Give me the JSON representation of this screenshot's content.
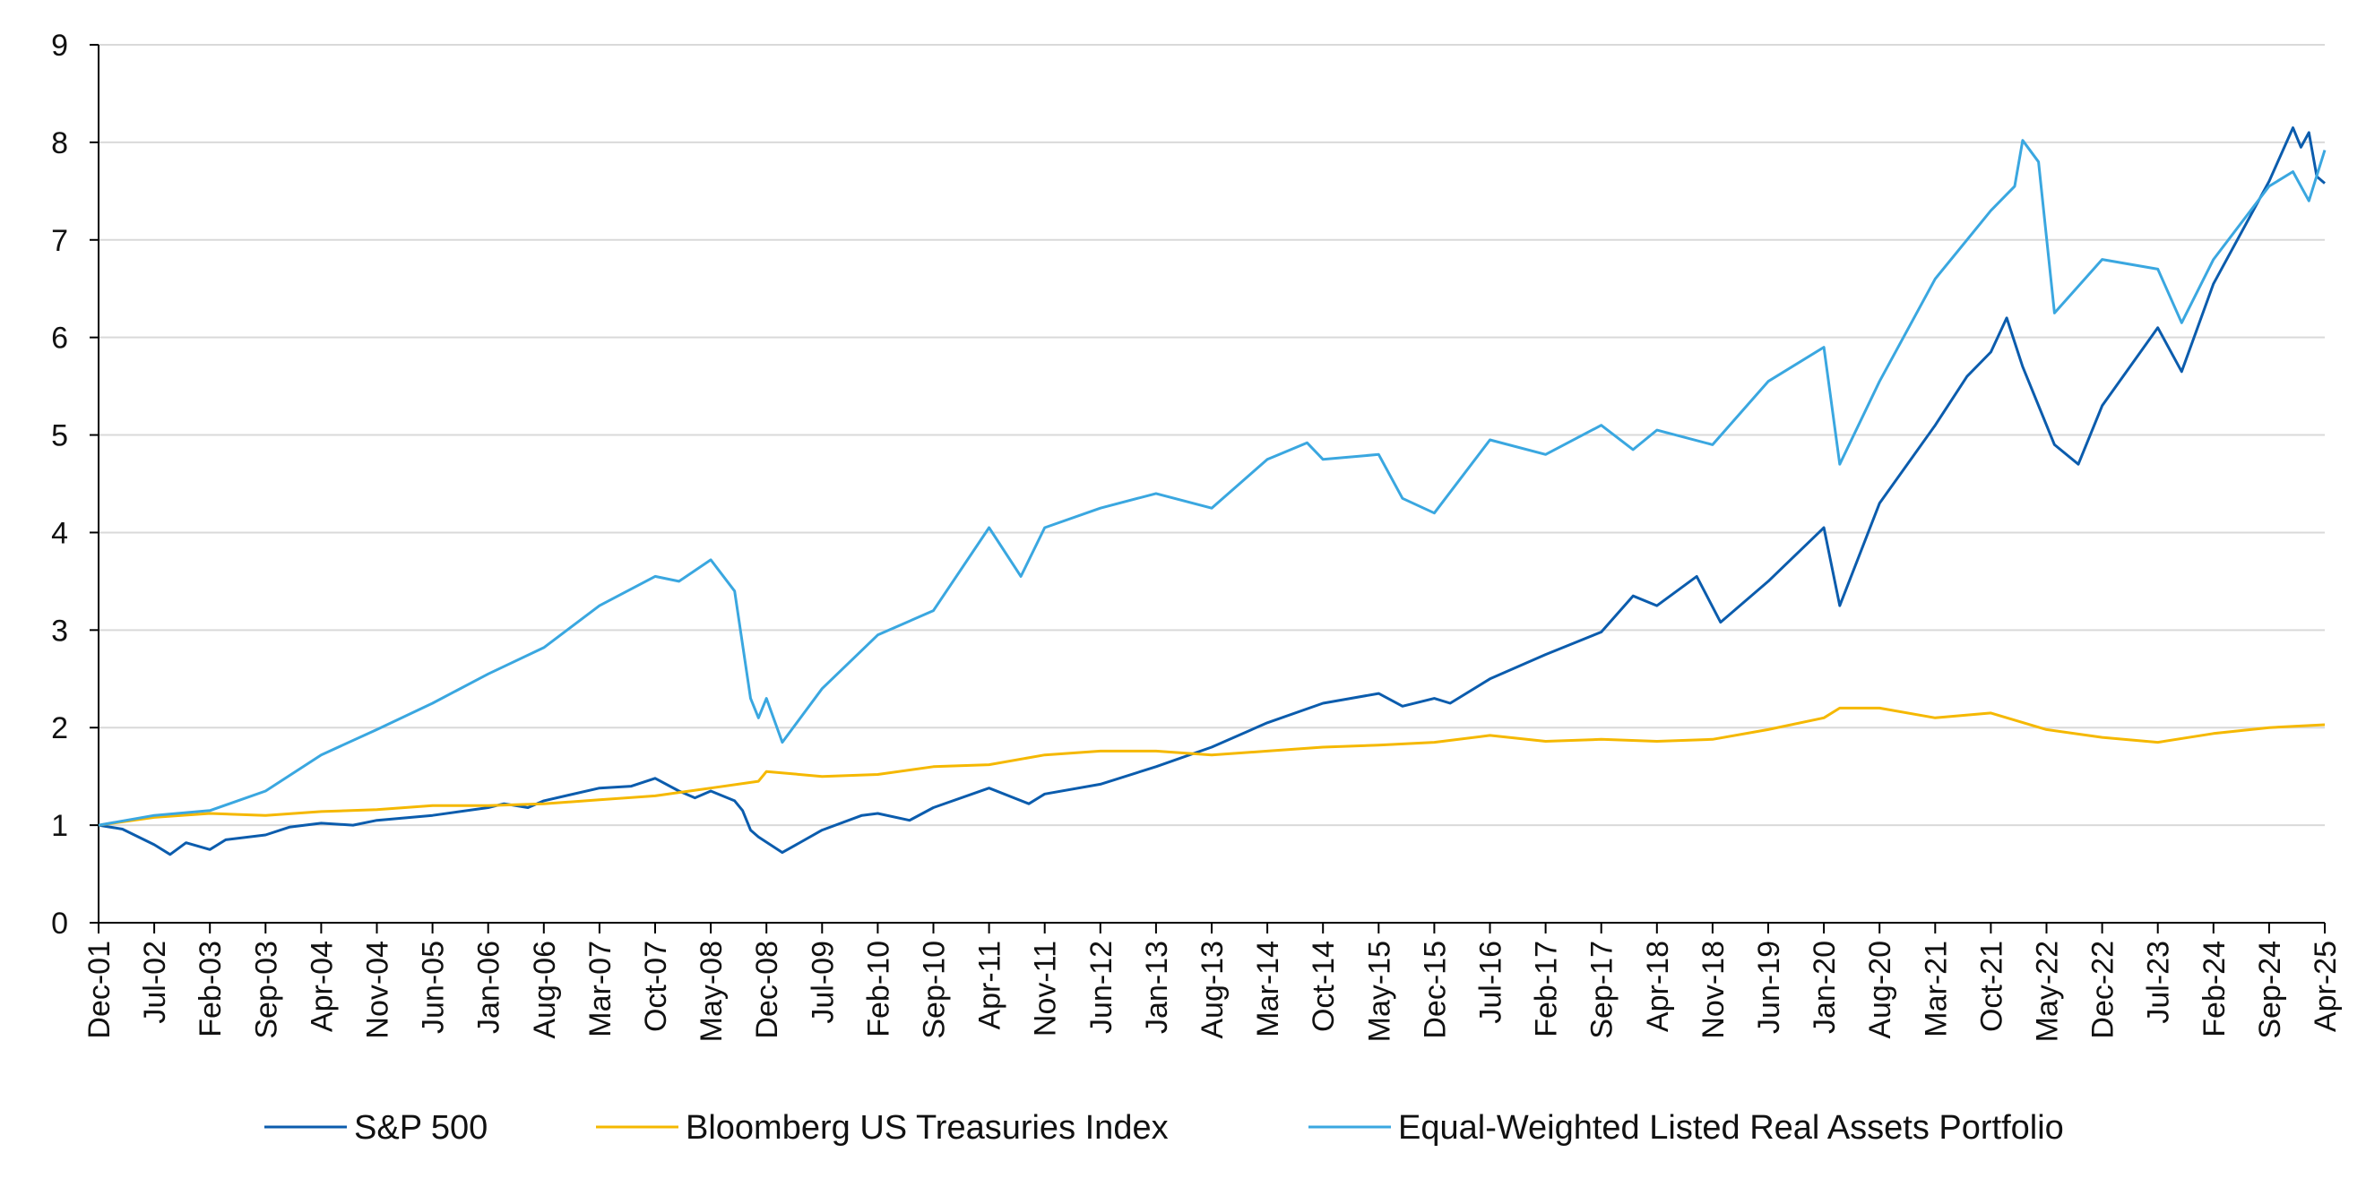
{
  "chart_data": {
    "type": "line",
    "title": "",
    "xlabel": "",
    "ylabel": "",
    "ylim": [
      0,
      9
    ],
    "y_ticks": [
      0,
      1,
      2,
      3,
      4,
      5,
      6,
      7,
      8,
      9
    ],
    "grid": "horizontal",
    "legend_position": "bottom",
    "x_tick_labels": [
      "Dec-01",
      "Jul-02",
      "Feb-03",
      "Sep-03",
      "Apr-04",
      "Nov-04",
      "Jun-05",
      "Jan-06",
      "Aug-06",
      "Mar-07",
      "Oct-07",
      "May-08",
      "Dec-08",
      "Jul-09",
      "Feb-10",
      "Sep-10",
      "Apr-11",
      "Nov-11",
      "Jun-12",
      "Jan-13",
      "Aug-13",
      "Mar-14",
      "Oct-14",
      "May-15",
      "Dec-15",
      "Jul-16",
      "Feb-17",
      "Sep-17",
      "Apr-18",
      "Nov-18",
      "Jun-19",
      "Jan-20",
      "Aug-20",
      "Mar-21",
      "Oct-21",
      "May-22",
      "Dec-22",
      "Jul-23",
      "Feb-24",
      "Sep-24",
      "Apr-25"
    ],
    "x_start": "Dec-01",
    "x_end": "Apr-25",
    "series": [
      {
        "name": "S&P 500",
        "color": "#0b5cad",
        "points": [
          [
            "Dec-01",
            1.0
          ],
          [
            "Mar-02",
            0.96
          ],
          [
            "Jul-02",
            0.8
          ],
          [
            "Sep-02",
            0.7
          ],
          [
            "Nov-02",
            0.82
          ],
          [
            "Feb-03",
            0.75
          ],
          [
            "Apr-03",
            0.85
          ],
          [
            "Sep-03",
            0.9
          ],
          [
            "Dec-03",
            0.98
          ],
          [
            "Apr-04",
            1.02
          ],
          [
            "Aug-04",
            1.0
          ],
          [
            "Nov-04",
            1.05
          ],
          [
            "Jun-05",
            1.1
          ],
          [
            "Jan-06",
            1.18
          ],
          [
            "Mar-06",
            1.22
          ],
          [
            "Jun-06",
            1.18
          ],
          [
            "Aug-06",
            1.25
          ],
          [
            "Mar-07",
            1.38
          ],
          [
            "Jul-07",
            1.4
          ],
          [
            "Oct-07",
            1.48
          ],
          [
            "Jan-08",
            1.35
          ],
          [
            "Mar-08",
            1.28
          ],
          [
            "May-08",
            1.35
          ],
          [
            "Aug-08",
            1.25
          ],
          [
            "Sep-08",
            1.15
          ],
          [
            "Oct-08",
            0.95
          ],
          [
            "Nov-08",
            0.88
          ],
          [
            "Feb-09",
            0.72
          ],
          [
            "Jul-09",
            0.95
          ],
          [
            "Dec-09",
            1.1
          ],
          [
            "Feb-10",
            1.12
          ],
          [
            "Jun-10",
            1.05
          ],
          [
            "Sep-10",
            1.18
          ],
          [
            "Apr-11",
            1.38
          ],
          [
            "Sep-11",
            1.22
          ],
          [
            "Nov-11",
            1.32
          ],
          [
            "Jun-12",
            1.42
          ],
          [
            "Jan-13",
            1.6
          ],
          [
            "Aug-13",
            1.8
          ],
          [
            "Mar-14",
            2.05
          ],
          [
            "Oct-14",
            2.25
          ],
          [
            "May-15",
            2.35
          ],
          [
            "Aug-15",
            2.22
          ],
          [
            "Dec-15",
            2.3
          ],
          [
            "Feb-16",
            2.25
          ],
          [
            "Jul-16",
            2.5
          ],
          [
            "Feb-17",
            2.75
          ],
          [
            "Sep-17",
            2.98
          ],
          [
            "Jan-18",
            3.35
          ],
          [
            "Apr-18",
            3.25
          ],
          [
            "Sep-18",
            3.55
          ],
          [
            "Dec-18",
            3.08
          ],
          [
            "Jun-19",
            3.5
          ],
          [
            "Jan-20",
            4.05
          ],
          [
            "Mar-20",
            3.25
          ],
          [
            "Aug-20",
            4.3
          ],
          [
            "Mar-21",
            5.1
          ],
          [
            "Jul-21",
            5.6
          ],
          [
            "Oct-21",
            5.85
          ],
          [
            "Dec-21",
            6.2
          ],
          [
            "Feb-22",
            5.7
          ],
          [
            "Jun-22",
            4.9
          ],
          [
            "Sep-22",
            4.7
          ],
          [
            "Dec-22",
            5.3
          ],
          [
            "Jul-23",
            6.1
          ],
          [
            "Oct-23",
            5.65
          ],
          [
            "Feb-24",
            6.55
          ],
          [
            "Sep-24",
            7.6
          ],
          [
            "Dec-24",
            8.15
          ],
          [
            "Jan-25",
            7.95
          ],
          [
            "Feb-25",
            8.1
          ],
          [
            "Mar-25",
            7.65
          ],
          [
            "Apr-25",
            7.58
          ]
        ]
      },
      {
        "name": "Bloomberg US Treasuries Index",
        "color": "#f5b800",
        "points": [
          [
            "Dec-01",
            1.0
          ],
          [
            "Jul-02",
            1.08
          ],
          [
            "Feb-03",
            1.12
          ],
          [
            "Sep-03",
            1.1
          ],
          [
            "Apr-04",
            1.14
          ],
          [
            "Nov-04",
            1.16
          ],
          [
            "Jun-05",
            1.2
          ],
          [
            "Jan-06",
            1.2
          ],
          [
            "Aug-06",
            1.22
          ],
          [
            "Mar-07",
            1.26
          ],
          [
            "Oct-07",
            1.3
          ],
          [
            "May-08",
            1.38
          ],
          [
            "Nov-08",
            1.45
          ],
          [
            "Dec-08",
            1.55
          ],
          [
            "Jul-09",
            1.5
          ],
          [
            "Feb-10",
            1.52
          ],
          [
            "Sep-10",
            1.6
          ],
          [
            "Apr-11",
            1.62
          ],
          [
            "Nov-11",
            1.72
          ],
          [
            "Jun-12",
            1.76
          ],
          [
            "Jan-13",
            1.76
          ],
          [
            "Aug-13",
            1.72
          ],
          [
            "Mar-14",
            1.76
          ],
          [
            "Oct-14",
            1.8
          ],
          [
            "May-15",
            1.82
          ],
          [
            "Dec-15",
            1.85
          ],
          [
            "Jul-16",
            1.92
          ],
          [
            "Feb-17",
            1.86
          ],
          [
            "Sep-17",
            1.88
          ],
          [
            "Apr-18",
            1.86
          ],
          [
            "Nov-18",
            1.88
          ],
          [
            "Jun-19",
            1.98
          ],
          [
            "Jan-20",
            2.1
          ],
          [
            "Mar-20",
            2.2
          ],
          [
            "Aug-20",
            2.2
          ],
          [
            "Mar-21",
            2.1
          ],
          [
            "Oct-21",
            2.15
          ],
          [
            "May-22",
            1.98
          ],
          [
            "Dec-22",
            1.9
          ],
          [
            "Jul-23",
            1.85
          ],
          [
            "Feb-24",
            1.94
          ],
          [
            "Sep-24",
            2.0
          ],
          [
            "Apr-25",
            2.03
          ]
        ]
      },
      {
        "name": "Equal-Weighted Listed Real Assets Portfolio",
        "color": "#3aa7e0",
        "points": [
          [
            "Dec-01",
            1.0
          ],
          [
            "Jul-02",
            1.1
          ],
          [
            "Feb-03",
            1.15
          ],
          [
            "Sep-03",
            1.35
          ],
          [
            "Apr-04",
            1.72
          ],
          [
            "Nov-04",
            1.98
          ],
          [
            "Jun-05",
            2.25
          ],
          [
            "Jan-06",
            2.55
          ],
          [
            "Aug-06",
            2.82
          ],
          [
            "Mar-07",
            3.25
          ],
          [
            "Oct-07",
            3.55
          ],
          [
            "Jan-08",
            3.5
          ],
          [
            "May-08",
            3.72
          ],
          [
            "Aug-08",
            3.4
          ],
          [
            "Oct-08",
            2.3
          ],
          [
            "Nov-08",
            2.1
          ],
          [
            "Dec-08",
            2.3
          ],
          [
            "Feb-09",
            1.85
          ],
          [
            "Jul-09",
            2.4
          ],
          [
            "Feb-10",
            2.95
          ],
          [
            "Sep-10",
            3.2
          ],
          [
            "Apr-11",
            4.05
          ],
          [
            "Aug-11",
            3.55
          ],
          [
            "Nov-11",
            4.05
          ],
          [
            "Jun-12",
            4.25
          ],
          [
            "Jan-13",
            4.4
          ],
          [
            "Aug-13",
            4.25
          ],
          [
            "Mar-14",
            4.75
          ],
          [
            "Aug-14",
            4.92
          ],
          [
            "Oct-14",
            4.75
          ],
          [
            "May-15",
            4.8
          ],
          [
            "Aug-15",
            4.35
          ],
          [
            "Dec-15",
            4.2
          ],
          [
            "Jul-16",
            4.95
          ],
          [
            "Feb-17",
            4.8
          ],
          [
            "Sep-17",
            5.1
          ],
          [
            "Jan-18",
            4.85
          ],
          [
            "Apr-18",
            5.05
          ],
          [
            "Nov-18",
            4.9
          ],
          [
            "Jun-19",
            5.55
          ],
          [
            "Jan-20",
            5.9
          ],
          [
            "Mar-20",
            4.7
          ],
          [
            "Aug-20",
            5.55
          ],
          [
            "Mar-21",
            6.6
          ],
          [
            "Oct-21",
            7.3
          ],
          [
            "Jan-22",
            7.55
          ],
          [
            "Feb-22",
            8.02
          ],
          [
            "Apr-22",
            7.8
          ],
          [
            "Jun-22",
            6.25
          ],
          [
            "Dec-22",
            6.8
          ],
          [
            "Jul-23",
            6.7
          ],
          [
            "Oct-23",
            6.15
          ],
          [
            "Feb-24",
            6.8
          ],
          [
            "Sep-24",
            7.55
          ],
          [
            "Dec-24",
            7.7
          ],
          [
            "Feb-25",
            7.4
          ],
          [
            "Apr-25",
            7.92
          ]
        ]
      }
    ]
  }
}
